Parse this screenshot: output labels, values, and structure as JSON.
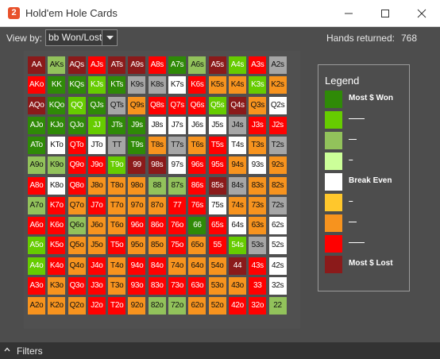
{
  "window": {
    "title": "Hold'em Hole Cards",
    "app_icon_glyph": "2"
  },
  "toolbar": {
    "view_by_label": "View by:",
    "view_by_value": "bb Won/Lost",
    "hands_label": "Hands returned:",
    "hands_value": "768"
  },
  "colors": {
    "dg": "#2f8a07",
    "g": "#66cc00",
    "lg": "#92c25b",
    "pg": "#ccff99",
    "w": "#ffffff",
    "y": "#ffc72c",
    "o": "#f7931e",
    "r": "#ff0000",
    "dr": "#8b1a1a",
    "gr": "#a6a6a6"
  },
  "grid": {
    "cells": [
      [
        [
          "AA",
          "dr"
        ],
        [
          "AKs",
          "lg"
        ],
        [
          "AQs",
          "dr"
        ],
        [
          "AJs",
          "r"
        ],
        [
          "ATs",
          "dr"
        ],
        [
          "A9s",
          "dr"
        ],
        [
          "A8s",
          "r"
        ],
        [
          "A7s",
          "dg"
        ],
        [
          "A6s",
          "lg"
        ],
        [
          "A5s",
          "dr"
        ],
        [
          "A4s",
          "g"
        ],
        [
          "A3s",
          "r"
        ],
        [
          "A2s",
          "gr"
        ]
      ],
      [
        [
          "AKo",
          "r"
        ],
        [
          "KK",
          "dg"
        ],
        [
          "KQs",
          "dg"
        ],
        [
          "KJs",
          "g"
        ],
        [
          "KTs",
          "dg"
        ],
        [
          "K9s",
          "gr"
        ],
        [
          "K8s",
          "gr"
        ],
        [
          "K7s",
          "w"
        ],
        [
          "K6s",
          "r"
        ],
        [
          "K5s",
          "o"
        ],
        [
          "K4s",
          "o"
        ],
        [
          "K3s",
          "g"
        ],
        [
          "K2s",
          "o"
        ]
      ],
      [
        [
          "AQo",
          "dr"
        ],
        [
          "KQo",
          "dg"
        ],
        [
          "QQ",
          "g"
        ],
        [
          "QJs",
          "dg"
        ],
        [
          "QTs",
          "gr"
        ],
        [
          "Q9s",
          "o"
        ],
        [
          "Q8s",
          "r"
        ],
        [
          "Q7s",
          "r"
        ],
        [
          "Q6s",
          "r"
        ],
        [
          "Q5s",
          "g"
        ],
        [
          "Q4s",
          "dr"
        ],
        [
          "Q3s",
          "o"
        ],
        [
          "Q2s",
          "w"
        ]
      ],
      [
        [
          "AJo",
          "dg"
        ],
        [
          "KJo",
          "dg"
        ],
        [
          "QJo",
          "dg"
        ],
        [
          "JJ",
          "g"
        ],
        [
          "JTs",
          "dg"
        ],
        [
          "J9s",
          "dg"
        ],
        [
          "J8s",
          "w"
        ],
        [
          "J7s",
          "w"
        ],
        [
          "J6s",
          "w"
        ],
        [
          "J5s",
          "w"
        ],
        [
          "J4s",
          "gr"
        ],
        [
          "J3s",
          "r"
        ],
        [
          "J2s",
          "r"
        ]
      ],
      [
        [
          "ATo",
          "dg"
        ],
        [
          "KTo",
          "w"
        ],
        [
          "QTo",
          "r"
        ],
        [
          "JTo",
          "w"
        ],
        [
          "TT",
          "gr"
        ],
        [
          "T9s",
          "dg"
        ],
        [
          "T8s",
          "o"
        ],
        [
          "T7s",
          "gr"
        ],
        [
          "T6s",
          "o"
        ],
        [
          "T5s",
          "r"
        ],
        [
          "T4s",
          "w"
        ],
        [
          "T3s",
          "o"
        ],
        [
          "T2s",
          "gr"
        ]
      ],
      [
        [
          "A9o",
          "lg"
        ],
        [
          "K9o",
          "lg"
        ],
        [
          "Q9o",
          "r"
        ],
        [
          "J9o",
          "r"
        ],
        [
          "T9o",
          "g"
        ],
        [
          "99",
          "dr"
        ],
        [
          "98s",
          "dr"
        ],
        [
          "97s",
          "w"
        ],
        [
          "96s",
          "r"
        ],
        [
          "95s",
          "r"
        ],
        [
          "94s",
          "o"
        ],
        [
          "93s",
          "w"
        ],
        [
          "92s",
          "o"
        ]
      ],
      [
        [
          "A8o",
          "r"
        ],
        [
          "K8o",
          "w"
        ],
        [
          "Q8o",
          "r"
        ],
        [
          "J8o",
          "o"
        ],
        [
          "T8o",
          "o"
        ],
        [
          "98o",
          "o"
        ],
        [
          "88",
          "lg"
        ],
        [
          "87s",
          "lg"
        ],
        [
          "86s",
          "r"
        ],
        [
          "85s",
          "dr"
        ],
        [
          "84s",
          "gr"
        ],
        [
          "83s",
          "o"
        ],
        [
          "82s",
          "o"
        ]
      ],
      [
        [
          "A7o",
          "lg"
        ],
        [
          "K7o",
          "r"
        ],
        [
          "Q7o",
          "o"
        ],
        [
          "J7o",
          "r"
        ],
        [
          "T7o",
          "o"
        ],
        [
          "97o",
          "o"
        ],
        [
          "87o",
          "o"
        ],
        [
          "77",
          "r"
        ],
        [
          "76s",
          "r"
        ],
        [
          "75s",
          "w"
        ],
        [
          "74s",
          "o"
        ],
        [
          "73s",
          "o"
        ],
        [
          "72s",
          "gr"
        ]
      ],
      [
        [
          "A6o",
          "r"
        ],
        [
          "K6o",
          "r"
        ],
        [
          "Q6o",
          "lg"
        ],
        [
          "J6o",
          "o"
        ],
        [
          "T6o",
          "o"
        ],
        [
          "96o",
          "r"
        ],
        [
          "86o",
          "r"
        ],
        [
          "76o",
          "r"
        ],
        [
          "66",
          "dg"
        ],
        [
          "65s",
          "r"
        ],
        [
          "64s",
          "w"
        ],
        [
          "63s",
          "o"
        ],
        [
          "62s",
          "w"
        ]
      ],
      [
        [
          "A5o",
          "g"
        ],
        [
          "K5o",
          "r"
        ],
        [
          "Q5o",
          "o"
        ],
        [
          "J5o",
          "o"
        ],
        [
          "T5o",
          "r"
        ],
        [
          "95o",
          "o"
        ],
        [
          "85o",
          "o"
        ],
        [
          "75o",
          "r"
        ],
        [
          "65o",
          "o"
        ],
        [
          "55",
          "r"
        ],
        [
          "54s",
          "g"
        ],
        [
          "53s",
          "gr"
        ],
        [
          "52s",
          "w"
        ]
      ],
      [
        [
          "A4o",
          "g"
        ],
        [
          "K4o",
          "r"
        ],
        [
          "Q4o",
          "o"
        ],
        [
          "J4o",
          "r"
        ],
        [
          "T4o",
          "o"
        ],
        [
          "94o",
          "r"
        ],
        [
          "84o",
          "r"
        ],
        [
          "74o",
          "o"
        ],
        [
          "64o",
          "o"
        ],
        [
          "54o",
          "o"
        ],
        [
          "44",
          "dr"
        ],
        [
          "43s",
          "r"
        ],
        [
          "42s",
          "w"
        ]
      ],
      [
        [
          "A3o",
          "r"
        ],
        [
          "K3o",
          "o"
        ],
        [
          "Q3o",
          "r"
        ],
        [
          "J3o",
          "r"
        ],
        [
          "T3o",
          "o"
        ],
        [
          "93o",
          "r"
        ],
        [
          "83o",
          "r"
        ],
        [
          "73o",
          "r"
        ],
        [
          "63o",
          "r"
        ],
        [
          "53o",
          "o"
        ],
        [
          "43o",
          "o"
        ],
        [
          "33",
          "r"
        ],
        [
          "32s",
          "w"
        ]
      ],
      [
        [
          "A2o",
          "o"
        ],
        [
          "K2o",
          "o"
        ],
        [
          "Q2o",
          "o"
        ],
        [
          "J2o",
          "r"
        ],
        [
          "T2o",
          "r"
        ],
        [
          "92o",
          "o"
        ],
        [
          "82o",
          "lg"
        ],
        [
          "72o",
          "lg"
        ],
        [
          "62o",
          "o"
        ],
        [
          "52o",
          "o"
        ],
        [
          "42o",
          "r"
        ],
        [
          "32o",
          "r"
        ],
        [
          "22",
          "lg"
        ]
      ]
    ]
  },
  "legend": {
    "title": "Legend",
    "items": [
      {
        "label": "Most $ Won",
        "color": "dg"
      },
      {
        "label": "——",
        "color": "g"
      },
      {
        "label": "—",
        "color": "lg"
      },
      {
        "label": "–",
        "color": "pg"
      },
      {
        "label": "Break Even",
        "color": "w"
      },
      {
        "label": "–",
        "color": "y"
      },
      {
        "label": "—",
        "color": "o"
      },
      {
        "label": "——",
        "color": "r"
      },
      {
        "label": "Most $ Lost",
        "color": "dr"
      }
    ]
  },
  "filters": {
    "label": "Filters"
  },
  "icons": {
    "app": "app-icon",
    "minimize": "minimize-icon",
    "maximize": "maximize-icon",
    "close": "close-icon",
    "dropdown": "chevron-down-icon",
    "filters": "chevron-up-icon"
  }
}
